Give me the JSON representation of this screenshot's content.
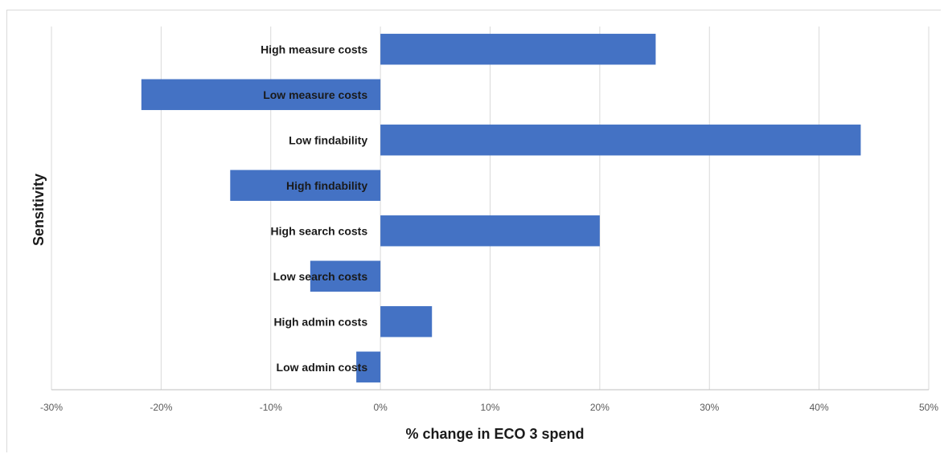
{
  "chart_data": {
    "type": "bar",
    "orientation": "horizontal",
    "xlabel": "% change in ECO 3 spend",
    "ylabel": "Sensitivity",
    "xlim": [
      -30,
      50
    ],
    "x_ticks": [
      -30,
      -20,
      -10,
      0,
      10,
      20,
      30,
      40,
      50
    ],
    "x_tick_labels": [
      "-30%",
      "-20%",
      "-10%",
      "0%",
      "10%",
      "20%",
      "30%",
      "40%",
      "50%"
    ],
    "categories": [
      "High measure costs",
      "Low measure costs",
      "Low findability",
      "High findability",
      "High search costs",
      "Low search costs",
      "High admin costs",
      "Low admin costs"
    ],
    "values": [
      25.1,
      -21.8,
      43.8,
      -13.7,
      20.0,
      -6.4,
      4.7,
      -2.2
    ],
    "bar_color": "#4472c4",
    "grid": true
  }
}
